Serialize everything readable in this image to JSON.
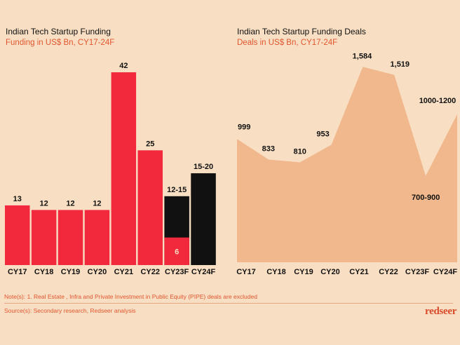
{
  "left": {
    "title": "Indian Tech Startup Funding",
    "subtitle": "Funding in US$ Bn, CY17-24F"
  },
  "right": {
    "title": "Indian Tech Startup Funding Deals",
    "subtitle": "Deals in US$ Bn, CY17-24F"
  },
  "footer": {
    "note": "Note(s): 1. Real Estate , Infra and Private Investment in Public Equity (PIPE) deals are excluded",
    "source": "Source(s): Secondary research, Redseer analysis",
    "brand": "redseer"
  },
  "colors": {
    "bar": "#f2293d",
    "forecast": "#111111",
    "area": "#f0b88c",
    "background": "#f8dfc3",
    "accent": "#e0552f"
  },
  "chart_data": [
    {
      "type": "bar",
      "title": "Indian Tech Startup Funding",
      "subtitle": "Funding in US$ Bn, CY17-24F",
      "categories": [
        "CY17",
        "CY18",
        "CY19",
        "CY20",
        "CY21",
        "CY22",
        "CY23F",
        "CY24F"
      ],
      "values": [
        13,
        12,
        12,
        12,
        42,
        25,
        15,
        20
      ],
      "ranges": [
        null,
        null,
        null,
        null,
        null,
        null,
        [
          12,
          15
        ],
        [
          15,
          20
        ]
      ],
      "range_fill_low": [
        null,
        null,
        null,
        null,
        null,
        null,
        6,
        null
      ],
      "labels": [
        "13",
        "12",
        "12",
        "12",
        "42",
        "25",
        "12-15",
        "15-20"
      ],
      "inner_labels": [
        "",
        "",
        "",
        "",
        "",
        "",
        "6",
        ""
      ],
      "ylim": [
        0,
        44
      ]
    },
    {
      "type": "area",
      "title": "Indian Tech Startup Funding Deals",
      "subtitle": "Deals in US$ Bn, CY17-24F",
      "categories": [
        "CY17",
        "CY18",
        "CY19",
        "CY20",
        "CY21",
        "CY22",
        "CY23F",
        "CY24F"
      ],
      "values": [
        999,
        833,
        810,
        953,
        1584,
        1519,
        700,
        1200
      ],
      "labels": [
        "999",
        "833",
        "810",
        "953",
        "1,584",
        "1,519",
        "700-900",
        "1000-1200"
      ],
      "ylim": [
        0,
        1700
      ]
    }
  ]
}
